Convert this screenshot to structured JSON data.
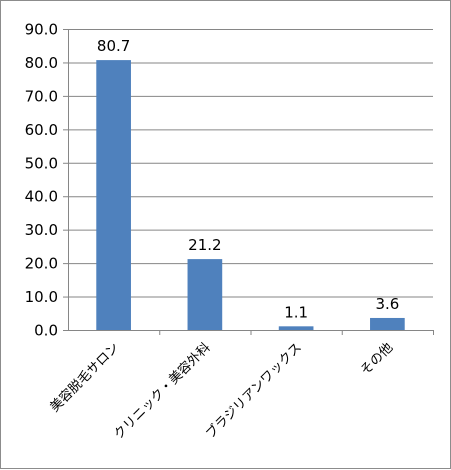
{
  "chart_data": {
    "type": "bar",
    "categories": [
      "美容脱毛サロン",
      "クリニック・美容外科",
      "ブラジリアンワックス",
      "その他"
    ],
    "values": [
      80.7,
      21.2,
      1.1,
      3.6
    ],
    "data_labels": [
      "80.7",
      "21.2",
      "1.1",
      "3.6"
    ],
    "y_ticks": [
      "0.0",
      "10.0",
      "20.0",
      "30.0",
      "40.0",
      "50.0",
      "60.0",
      "70.0",
      "80.0",
      "90.0"
    ],
    "ylim": [
      0,
      90
    ],
    "grid": true,
    "legend": "none",
    "bar_color": "#4f81bd",
    "grid_color": "#868686",
    "axis_color": "#868686"
  }
}
